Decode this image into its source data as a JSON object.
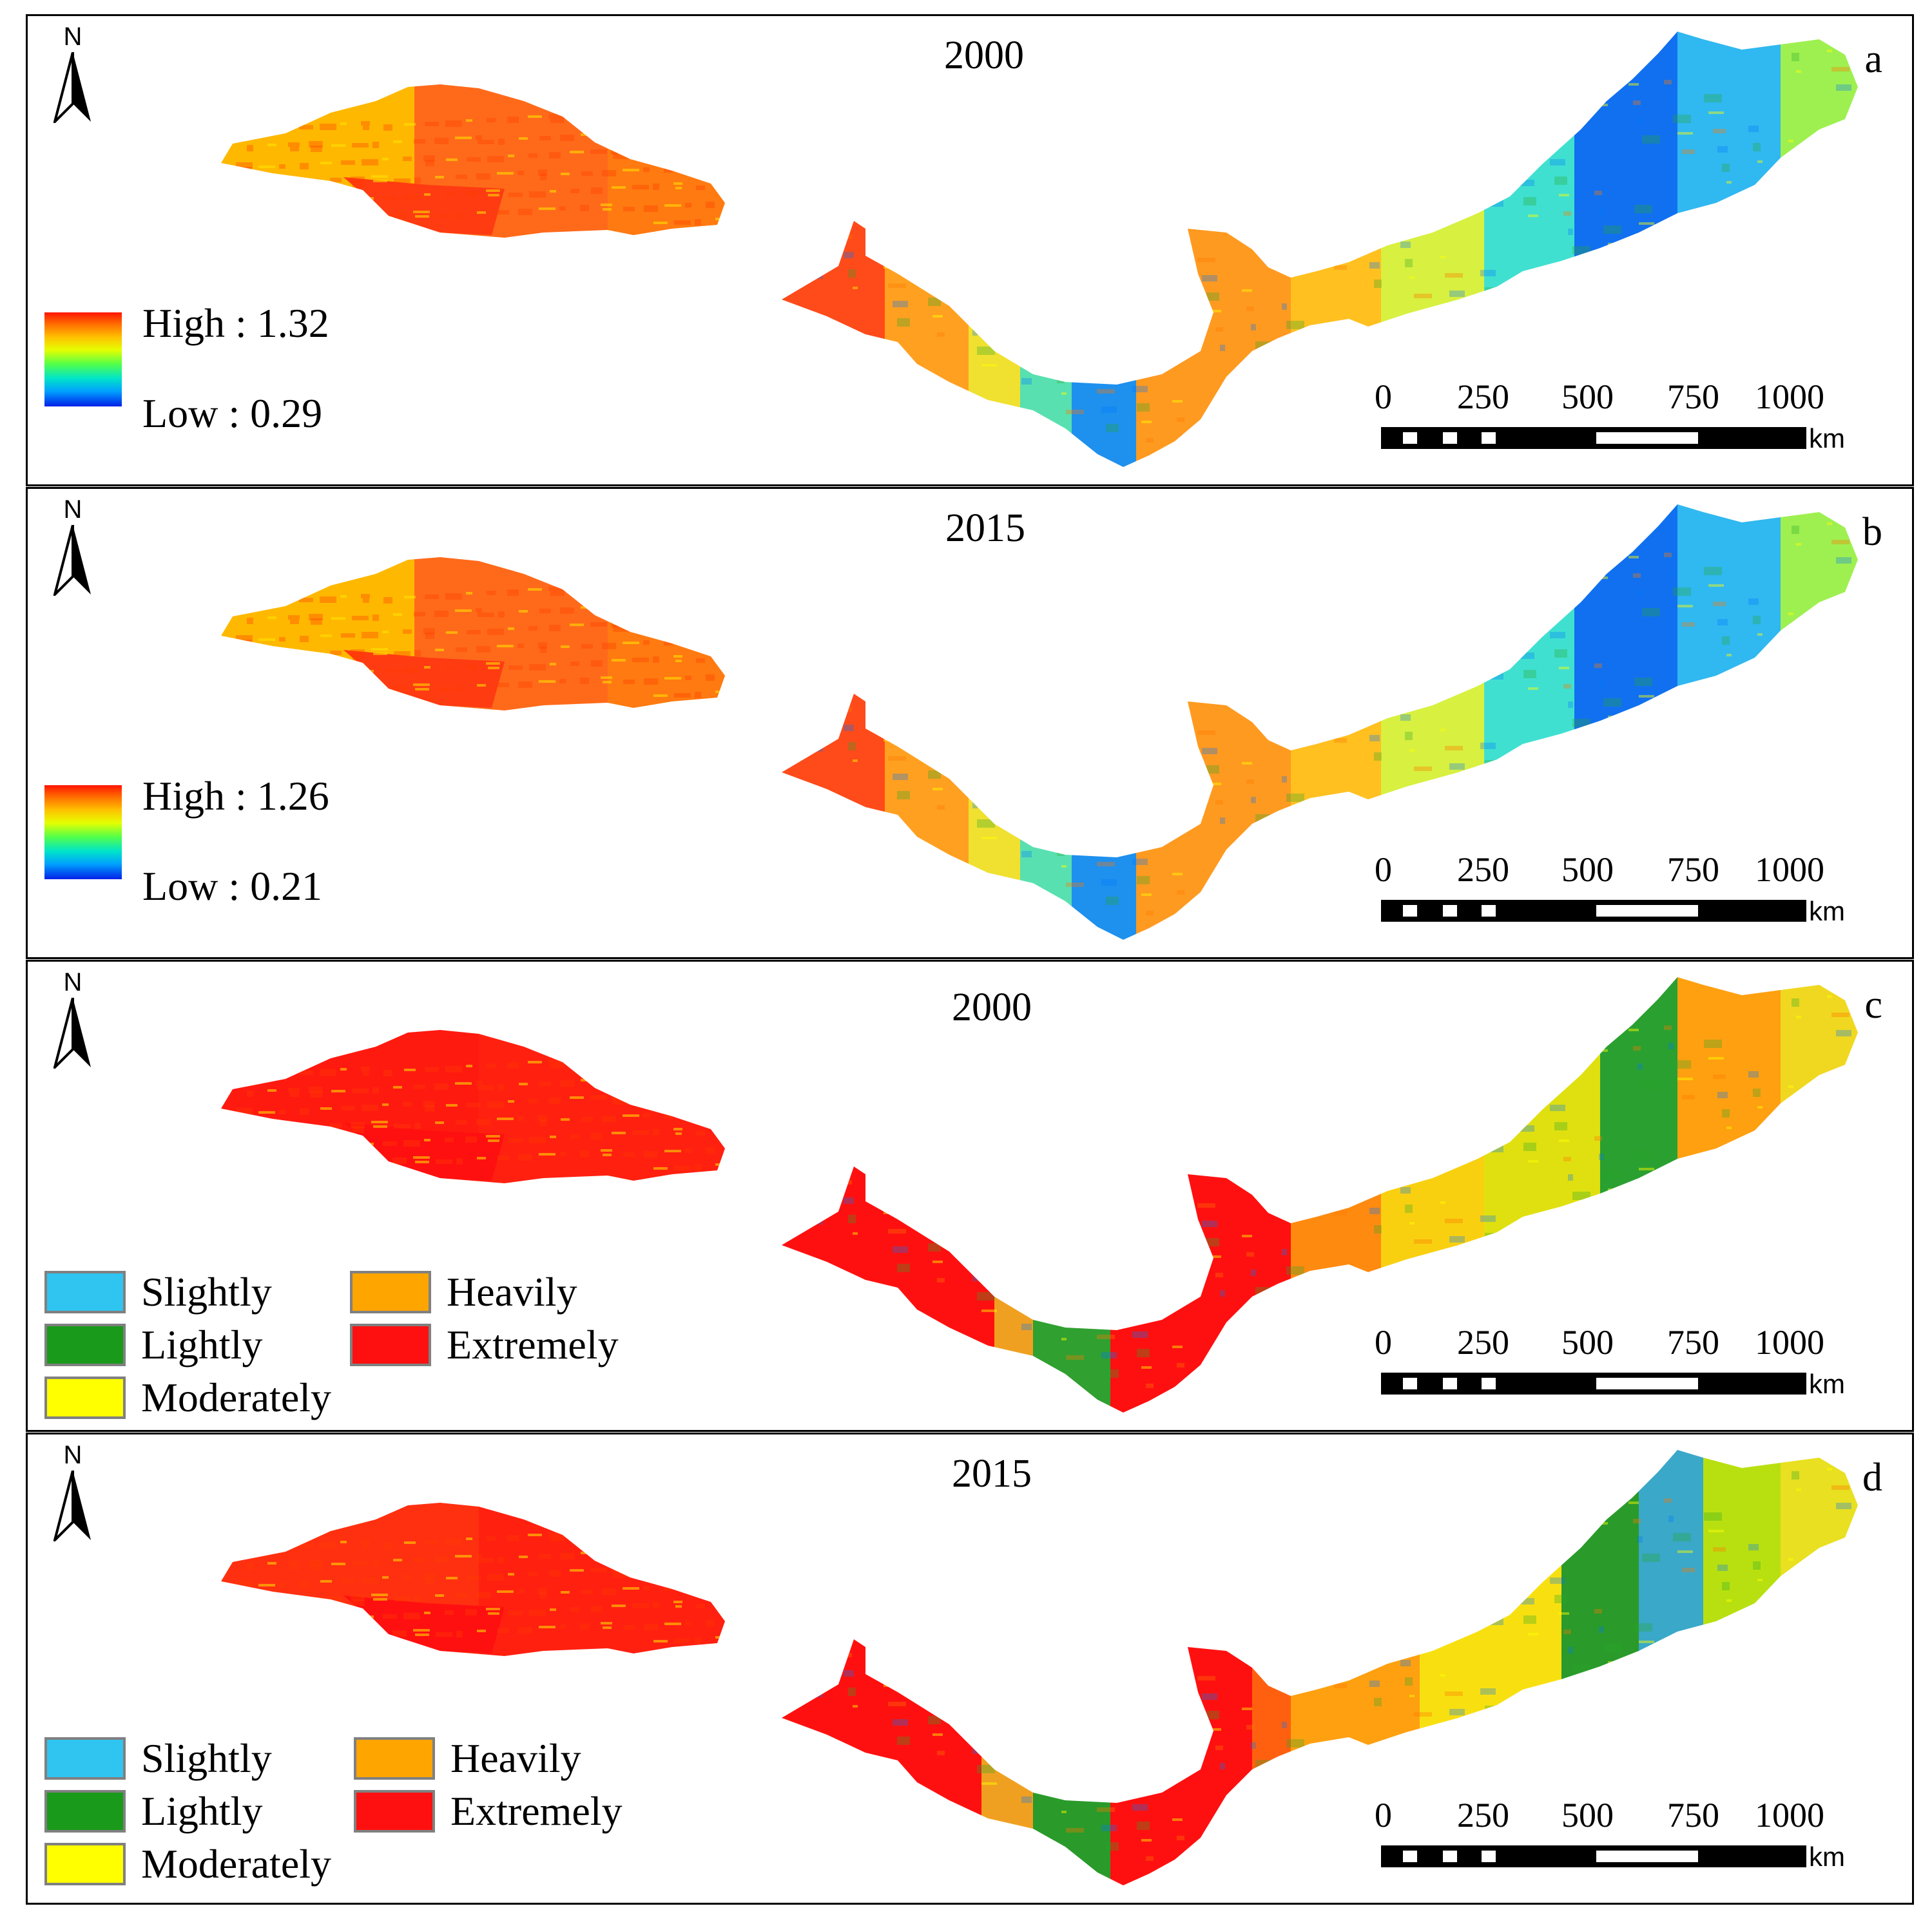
{
  "figure": {
    "panels": [
      {
        "id": "a",
        "letter": "a",
        "year": "2000",
        "legend_type": "gradient",
        "legend": {
          "high_label": "High : 1.32",
          "low_label": "Low : 0.29"
        },
        "palette": "continuous"
      },
      {
        "id": "b",
        "letter": "b",
        "year": "2015",
        "legend_type": "gradient",
        "legend": {
          "high_label": "High : 1.26",
          "low_label": "Low : 0.21"
        },
        "palette": "continuous"
      },
      {
        "id": "c",
        "letter": "c",
        "year": "2000",
        "legend_type": "classes",
        "legend": {
          "classes": [
            {
              "label": "Slightly",
              "color": "#2fc5f0"
            },
            {
              "label": "Lightly",
              "color": "#1a9a1a"
            },
            {
              "label": "Moderately",
              "color": "#ffff00"
            },
            {
              "label": "Heavily",
              "color": "#ffa500"
            },
            {
              "label": "Extremely",
              "color": "#ff1010"
            }
          ]
        },
        "palette": "classes_2000"
      },
      {
        "id": "d",
        "letter": "d",
        "year": "2015",
        "legend_type": "classes",
        "legend": {
          "classes": [
            {
              "label": "Slightly",
              "color": "#2fc5f0"
            },
            {
              "label": "Lightly",
              "color": "#1a9a1a"
            },
            {
              "label": "Moderately",
              "color": "#ffff00"
            },
            {
              "label": "Heavily",
              "color": "#ffa500"
            },
            {
              "label": "Extremely",
              "color": "#ff1010"
            }
          ]
        },
        "palette": "classes_2015"
      }
    ],
    "north_label": "N",
    "scale_bar": {
      "ticks": [
        "0",
        "250",
        "500",
        "750",
        "1000"
      ],
      "unit": "km"
    }
  }
}
